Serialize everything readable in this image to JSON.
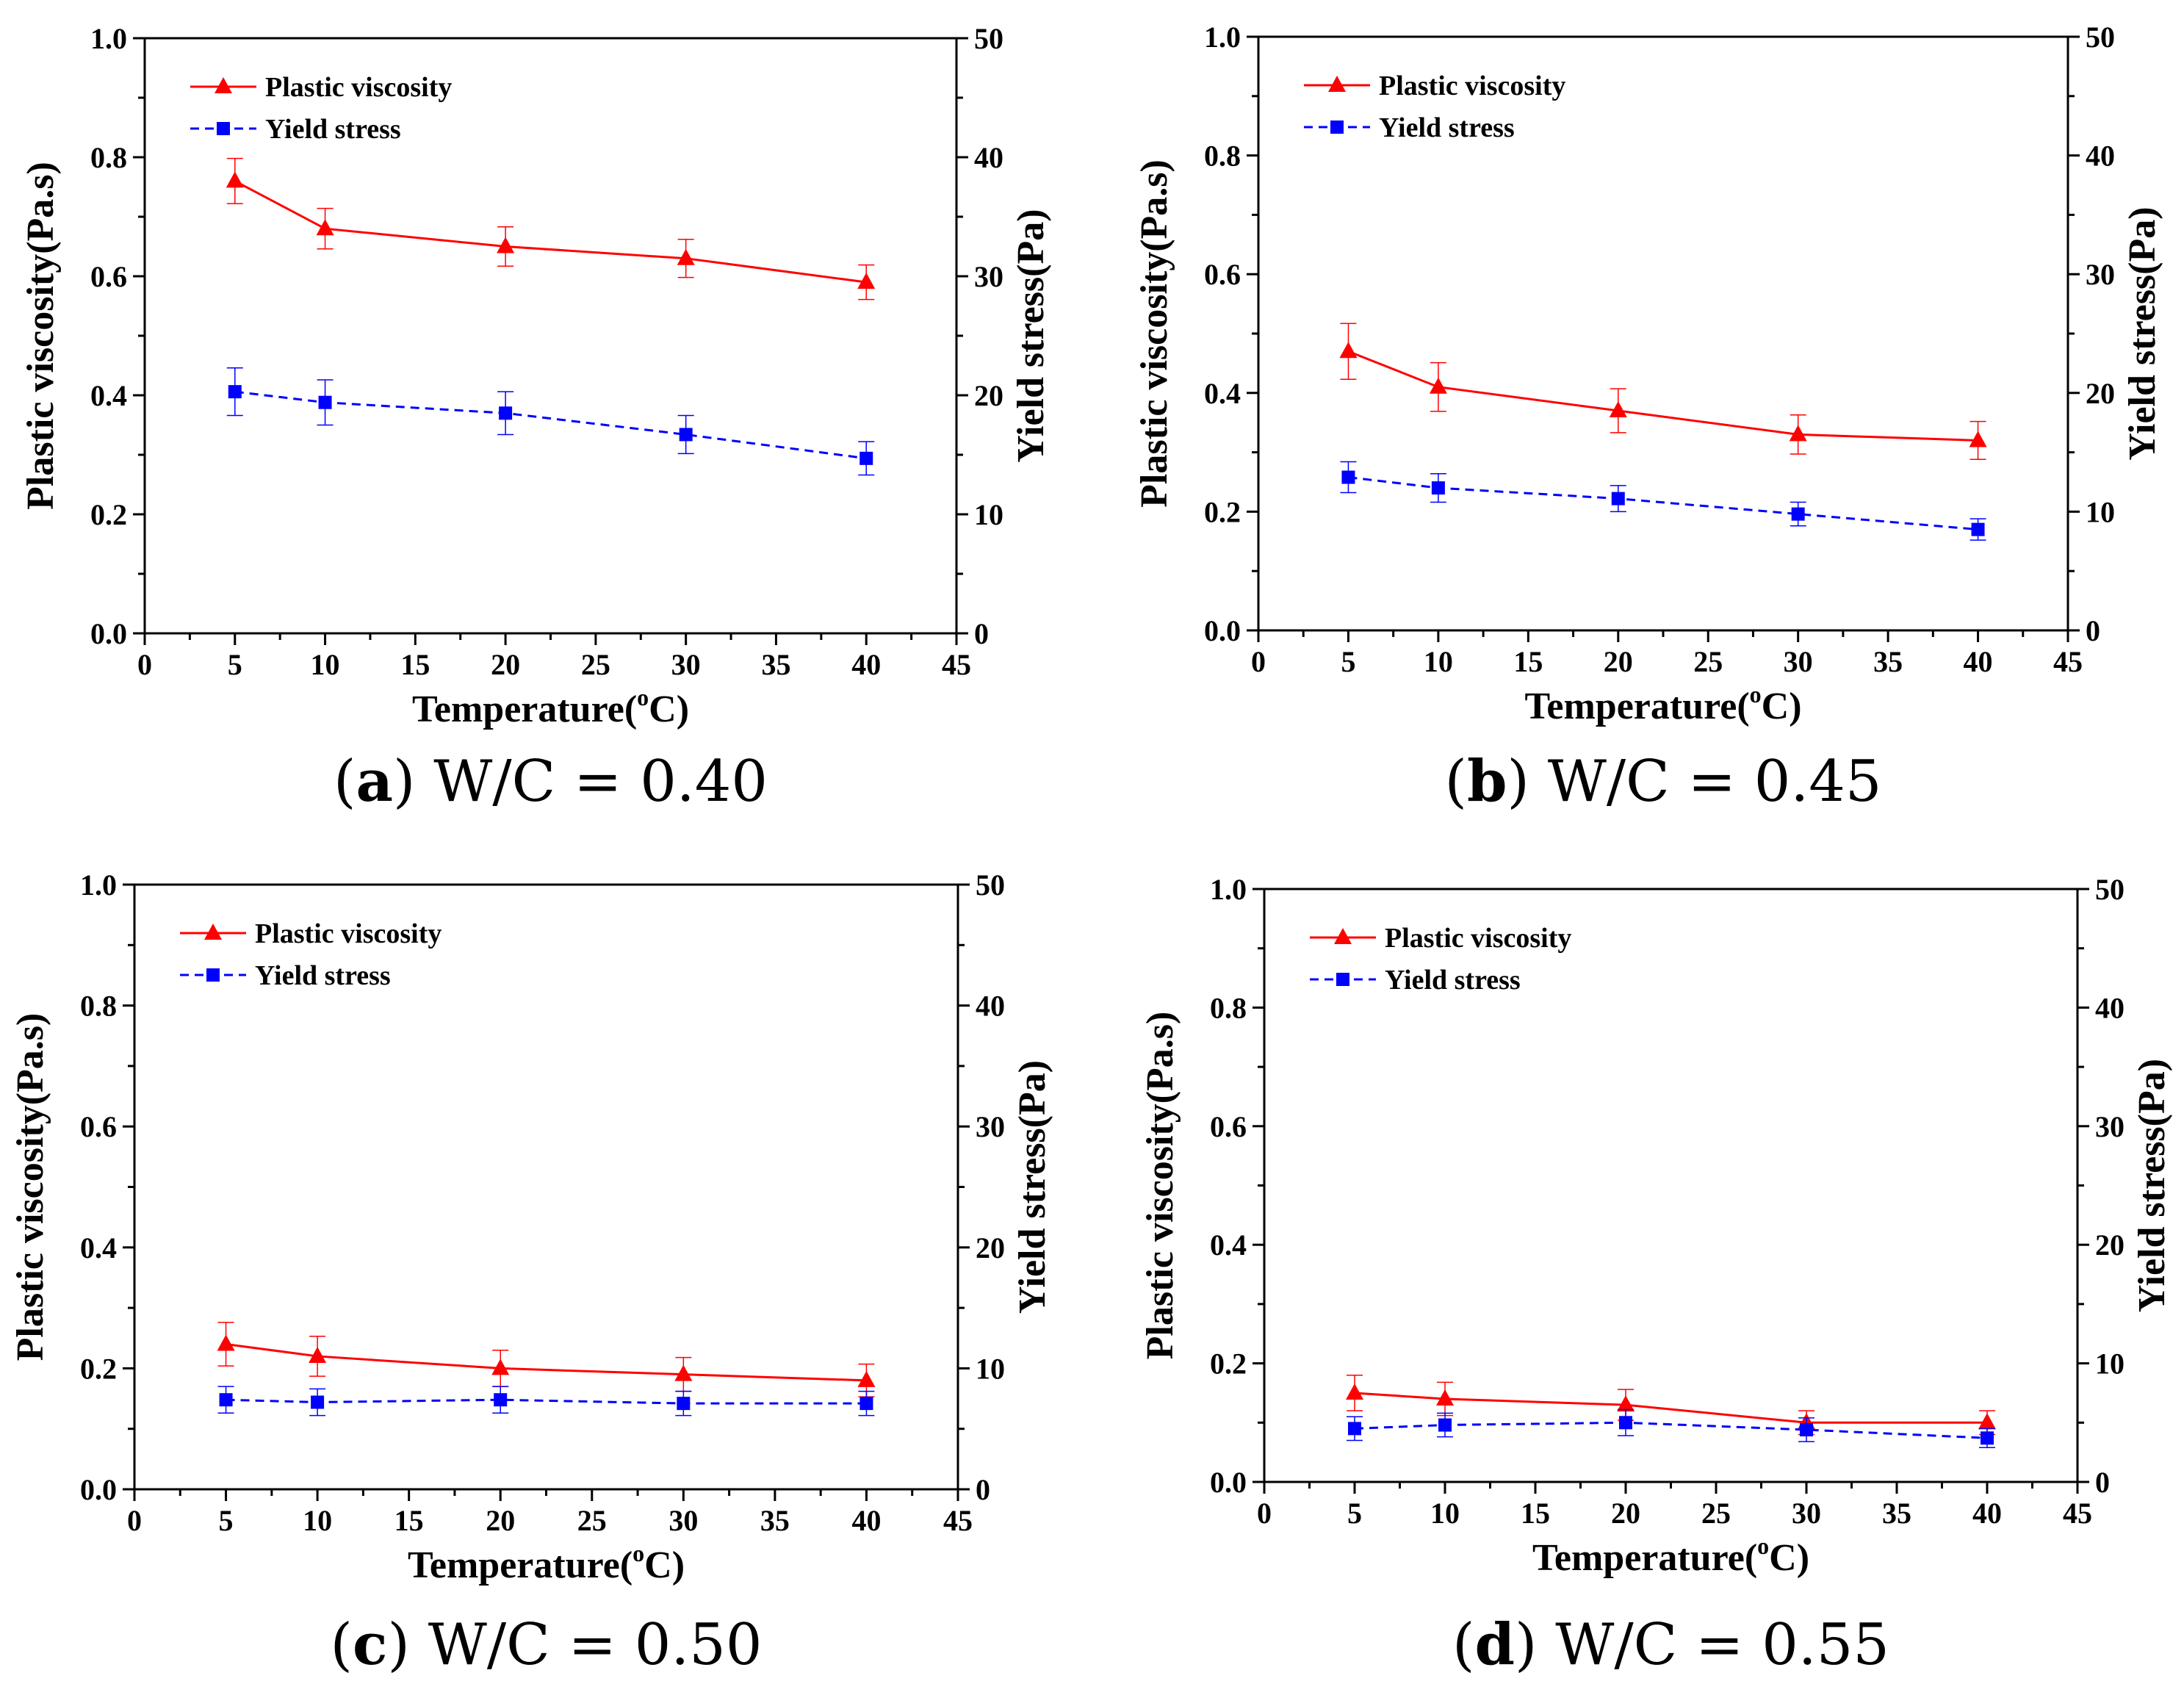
{
  "colors": {
    "plastic_viscosity": "#ff0000",
    "yield_stress": "#0000ff",
    "axis": "#000000"
  },
  "chart_data": [
    {
      "type": "line",
      "panel_letter": "a",
      "caption": "W/C = 0.40",
      "xlabel": "Temperature(",
      "xlabel_sup": "o",
      "xlabel_unit": "C)",
      "ylabel_left": "Plastic viscosity(Pa.s)",
      "ylabel_right": "Yield stress(Pa)",
      "xlim": [
        0,
        45
      ],
      "ylim_left": [
        0,
        1.0
      ],
      "ylim_right": [
        0,
        50
      ],
      "xticks": [
        "0",
        "5",
        "10",
        "15",
        "20",
        "25",
        "30",
        "35",
        "40",
        "45"
      ],
      "yticks_left": [
        "0.0",
        "0.2",
        "0.4",
        "0.6",
        "0.8",
        "1.0"
      ],
      "yticks_right": [
        "0",
        "10",
        "20",
        "30",
        "40",
        "50"
      ],
      "x": [
        5,
        10,
        20,
        30,
        40
      ],
      "series": [
        {
          "name": "Plastic viscosity",
          "axis": "left",
          "marker": "triangle",
          "dash": "solid",
          "values": [
            0.76,
            0.68,
            0.65,
            0.63,
            0.59
          ],
          "errors": [
            0.038,
            0.034,
            0.033,
            0.032,
            0.029
          ]
        },
        {
          "name": "Yield stress",
          "axis": "right",
          "marker": "square",
          "dash": "dashed",
          "values": [
            20.3,
            19.4,
            18.5,
            16.7,
            14.7
          ],
          "errors": [
            2.0,
            1.9,
            1.8,
            1.6,
            1.4
          ]
        }
      ]
    },
    {
      "type": "line",
      "panel_letter": "b",
      "caption": "W/C = 0.45",
      "xlabel": "Temperature(",
      "xlabel_sup": "o",
      "xlabel_unit": "C)",
      "ylabel_left": "Plastic viscosity(Pa.s)",
      "ylabel_right": "Yield stress(Pa)",
      "xlim": [
        0,
        45
      ],
      "ylim_left": [
        0,
        1.0
      ],
      "ylim_right": [
        0,
        50
      ],
      "xticks": [
        "0",
        "5",
        "10",
        "15",
        "20",
        "25",
        "30",
        "35",
        "40",
        "45"
      ],
      "yticks_left": [
        "0.0",
        "0.2",
        "0.4",
        "0.6",
        "0.8",
        "1.0"
      ],
      "yticks_right": [
        "0",
        "10",
        "20",
        "30",
        "40",
        "50"
      ],
      "x": [
        5,
        10,
        20,
        30,
        40
      ],
      "series": [
        {
          "name": "Plastic viscosity",
          "axis": "left",
          "marker": "triangle",
          "dash": "solid",
          "values": [
            0.47,
            0.41,
            0.37,
            0.33,
            0.32
          ],
          "errors": [
            0.047,
            0.041,
            0.037,
            0.033,
            0.032
          ]
        },
        {
          "name": "Yield stress",
          "axis": "right",
          "marker": "square",
          "dash": "dashed",
          "values": [
            12.9,
            12.0,
            11.1,
            9.8,
            8.5
          ],
          "errors": [
            1.3,
            1.2,
            1.1,
            1.0,
            0.9
          ]
        }
      ]
    },
    {
      "type": "line",
      "panel_letter": "c",
      "caption": "W/C = 0.50",
      "xlabel": "Temperature(",
      "xlabel_sup": "o",
      "xlabel_unit": "C)",
      "ylabel_left": "Plastic viscosity(Pa.s)",
      "ylabel_right": "Yield stress(Pa)",
      "xlim": [
        0,
        45
      ],
      "ylim_left": [
        0,
        1.0
      ],
      "ylim_right": [
        0,
        50
      ],
      "xticks": [
        "0",
        "5",
        "10",
        "15",
        "20",
        "25",
        "30",
        "35",
        "40",
        "45"
      ],
      "yticks_left": [
        "0.0",
        "0.2",
        "0.4",
        "0.6",
        "0.8",
        "1.0"
      ],
      "yticks_right": [
        "0",
        "10",
        "20",
        "30",
        "40",
        "50"
      ],
      "x": [
        5,
        10,
        20,
        30,
        40
      ],
      "series": [
        {
          "name": "Plastic viscosity",
          "axis": "left",
          "marker": "triangle",
          "dash": "solid",
          "values": [
            0.24,
            0.22,
            0.2,
            0.19,
            0.18
          ],
          "errors": [
            0.036,
            0.033,
            0.03,
            0.028,
            0.027
          ]
        },
        {
          "name": "Yield stress",
          "axis": "right",
          "marker": "square",
          "dash": "dashed",
          "values": [
            7.4,
            7.2,
            7.4,
            7.1,
            7.1
          ],
          "errors": [
            1.1,
            1.1,
            1.1,
            1.0,
            1.0
          ]
        }
      ]
    },
    {
      "type": "line",
      "panel_letter": "d",
      "caption": "W/C = 0.55",
      "xlabel": "Temperature(",
      "xlabel_sup": "o",
      "xlabel_unit": "C)",
      "ylabel_left": "Plastic viscosity(Pa.s)",
      "ylabel_right": "Yield stress(Pa)",
      "xlim": [
        0,
        45
      ],
      "ylim_left": [
        0,
        1.0
      ],
      "ylim_right": [
        0,
        50
      ],
      "xticks": [
        "0",
        "5",
        "10",
        "15",
        "20",
        "25",
        "30",
        "35",
        "40",
        "45"
      ],
      "yticks_left": [
        "0.0",
        "0.2",
        "0.4",
        "0.6",
        "0.8",
        "1.0"
      ],
      "yticks_right": [
        "0",
        "10",
        "20",
        "30",
        "40",
        "50"
      ],
      "x": [
        5,
        10,
        20,
        30,
        40
      ],
      "series": [
        {
          "name": "Plastic viscosity",
          "axis": "left",
          "marker": "triangle",
          "dash": "solid",
          "values": [
            0.15,
            0.14,
            0.13,
            0.1,
            0.1
          ],
          "errors": [
            0.03,
            0.028,
            0.026,
            0.02,
            0.02
          ]
        },
        {
          "name": "Yield stress",
          "axis": "right",
          "marker": "square",
          "dash": "dashed",
          "values": [
            4.5,
            4.8,
            5.0,
            4.4,
            3.7
          ],
          "errors": [
            1.0,
            1.0,
            1.1,
            1.0,
            0.8
          ]
        }
      ]
    }
  ]
}
